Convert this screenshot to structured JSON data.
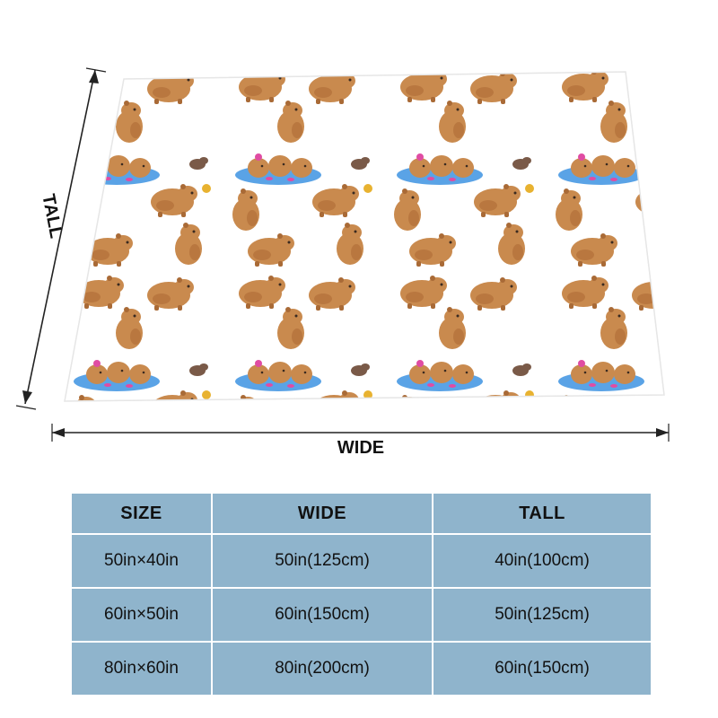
{
  "dimension_labels": {
    "tall": "TALL",
    "wide": "WIDE"
  },
  "colors": {
    "table_bg": "#8fb4cc",
    "capybara_body": "#c98a4e",
    "capybara_shade": "#a96a36",
    "water": "#5aa3e6",
    "flower": "#e04ca3",
    "dark_capybara": "#7a5a48"
  },
  "blanket_pattern": "capybara-pattern",
  "size_table": {
    "headers": [
      "SIZE",
      "WIDE",
      "TALL"
    ],
    "rows": [
      [
        "50in×40in",
        "50in(125cm)",
        "40in(100cm)"
      ],
      [
        "60in×50in",
        "60in(150cm)",
        "50in(125cm)"
      ],
      [
        "80in×60in",
        "80in(200cm)",
        "60in(150cm)"
      ]
    ]
  }
}
